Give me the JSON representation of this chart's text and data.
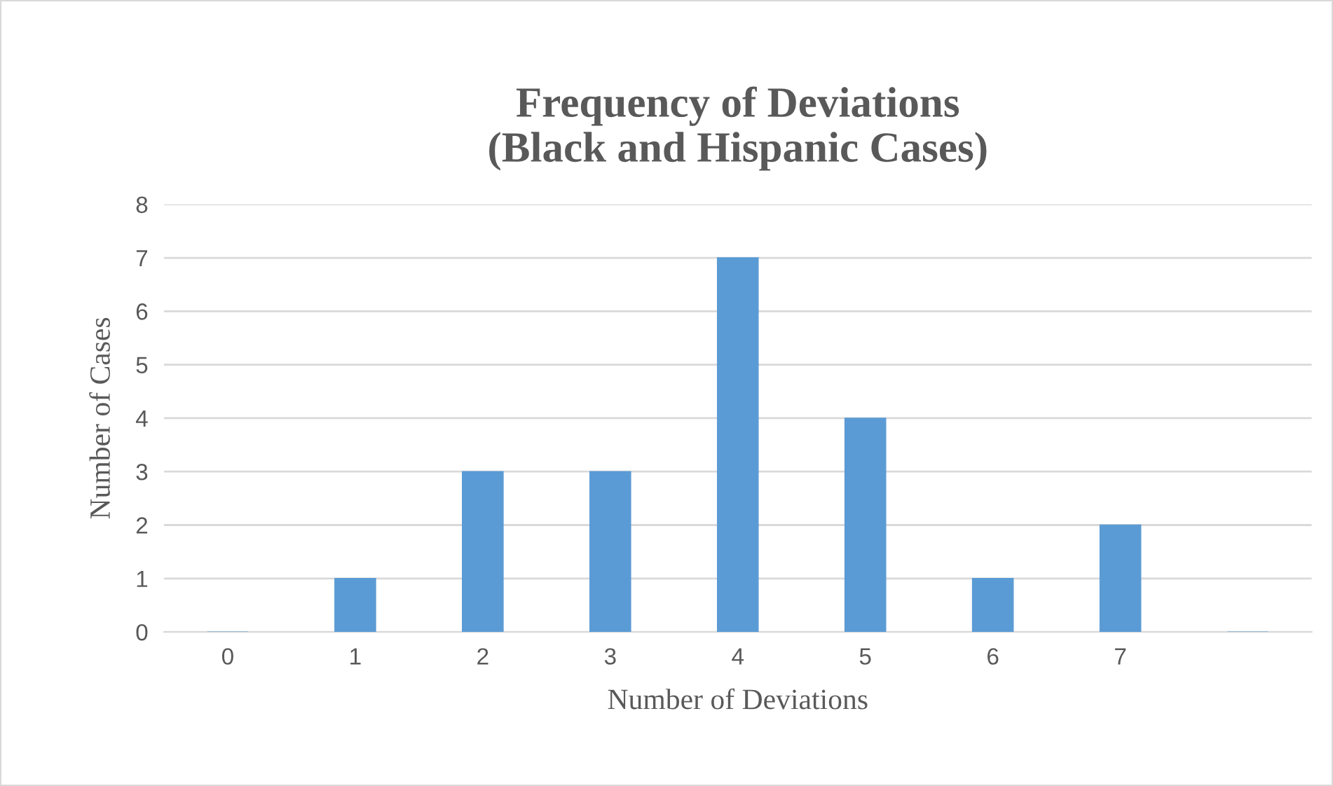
{
  "chart_data": {
    "type": "bar",
    "title": "Frequency of Deviations\n(Black and Hispanic Cases)",
    "xlabel": "Number of Deviations",
    "ylabel": "Number of Cases",
    "categories": [
      "0",
      "1",
      "2",
      "3",
      "4",
      "5",
      "6",
      "7",
      null
    ],
    "values": [
      0,
      1,
      3,
      3,
      7,
      4,
      1,
      2,
      0
    ],
    "color": "#5b9bd5",
    "ylim": [
      0,
      8
    ],
    "yticks": [
      0,
      1,
      2,
      3,
      4,
      5,
      6,
      7,
      8
    ],
    "grid": "y"
  }
}
